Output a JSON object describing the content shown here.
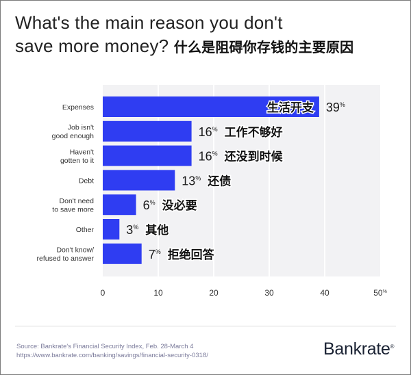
{
  "title": {
    "line1": "What's the main reason you don't",
    "line2": "save more money?",
    "annotation": "什么是阻碍你存钱的主要原因"
  },
  "colors": {
    "bar": "#2f3df2",
    "plot_bg": "#f2f2f4",
    "grid": "#ffffff"
  },
  "chart_data": {
    "type": "bar",
    "orientation": "horizontal",
    "categories": [
      [
        "Expenses"
      ],
      [
        "Job isn't",
        "good enough"
      ],
      [
        "Haven't",
        "gotten to it"
      ],
      [
        "Debt"
      ],
      [
        "Don't need",
        "to save more"
      ],
      [
        "Other"
      ],
      [
        "Don't know/",
        "refused to answer"
      ]
    ],
    "values": [
      39,
      16,
      16,
      13,
      6,
      3,
      7
    ],
    "value_unit": "%",
    "annotations": [
      "生活开支",
      "工作不够好",
      "还没到时候",
      "还债",
      "没必要",
      "其他",
      "拒绝回答"
    ],
    "xlim": [
      0,
      50
    ],
    "xticks": [
      "0",
      "10",
      "20",
      "30",
      "40",
      "50"
    ],
    "xtick_last_suffix": "%",
    "title": "What's the main reason you don't save more money?",
    "xlabel": "",
    "ylabel": ""
  },
  "footer": {
    "source_line1": "Source: Bankrate's Financial Security Index, Feb. 28-March 4",
    "source_line2": "https://www.bankrate.com/banking/savings/financial-security-0318/",
    "logo": "Bankrate",
    "logo_mark": "®"
  }
}
